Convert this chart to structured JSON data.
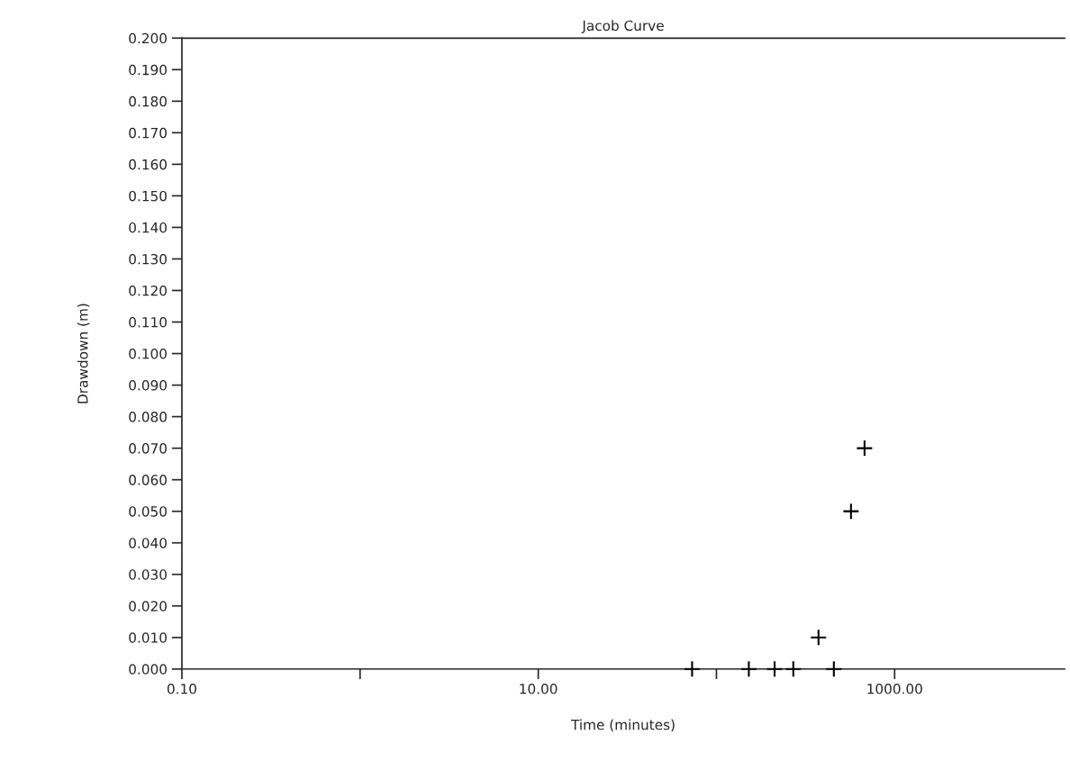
{
  "chart_data": {
    "type": "scatter",
    "title": "Jacob Curve",
    "xlabel": "Time (minutes)",
    "ylabel": "Drawdown (m)",
    "x": [
      73,
      152,
      212,
      270,
      374,
      456,
      569,
      678
    ],
    "values": [
      0,
      0,
      0,
      0,
      0.01,
      0,
      0.05,
      0.07
    ],
    "color": "#000000",
    "marker": "cross",
    "log": "x",
    "grid": false,
    "xlim": [
      0.1,
      9000
    ],
    "xticks": [
      {
        "value": 0.1,
        "label": "0.10"
      },
      {
        "value": 1,
        "label": null
      },
      {
        "value": 10,
        "label": "10.00"
      },
      {
        "value": 100,
        "label": null
      },
      {
        "value": 1000,
        "label": "1000.00"
      }
    ],
    "ylim": [
      0,
      0.2
    ],
    "yticks": [
      {
        "value": 0,
        "label": "0.000"
      },
      {
        "value": 0.01,
        "label": "0.010"
      },
      {
        "value": 0.02,
        "label": "0.020"
      },
      {
        "value": 0.03,
        "label": "0.030"
      },
      {
        "value": 0.04,
        "label": "0.040"
      },
      {
        "value": 0.05,
        "label": "0.050"
      },
      {
        "value": 0.06,
        "label": "0.060"
      },
      {
        "value": 0.07,
        "label": "0.070"
      },
      {
        "value": 0.08,
        "label": "0.080"
      },
      {
        "value": 0.09,
        "label": "0.090"
      },
      {
        "value": 0.1,
        "label": "0.100"
      },
      {
        "value": 0.11,
        "label": "0.110"
      },
      {
        "value": 0.12,
        "label": "0.120"
      },
      {
        "value": 0.13,
        "label": "0.130"
      },
      {
        "value": 0.14,
        "label": "0.140"
      },
      {
        "value": 0.15,
        "label": "0.150"
      },
      {
        "value": 0.16,
        "label": "0.160"
      },
      {
        "value": 0.17,
        "label": "0.170"
      },
      {
        "value": 0.18,
        "label": "0.180"
      },
      {
        "value": 0.19,
        "label": "0.190"
      },
      {
        "value": 0.2,
        "label": "0.200"
      }
    ]
  }
}
